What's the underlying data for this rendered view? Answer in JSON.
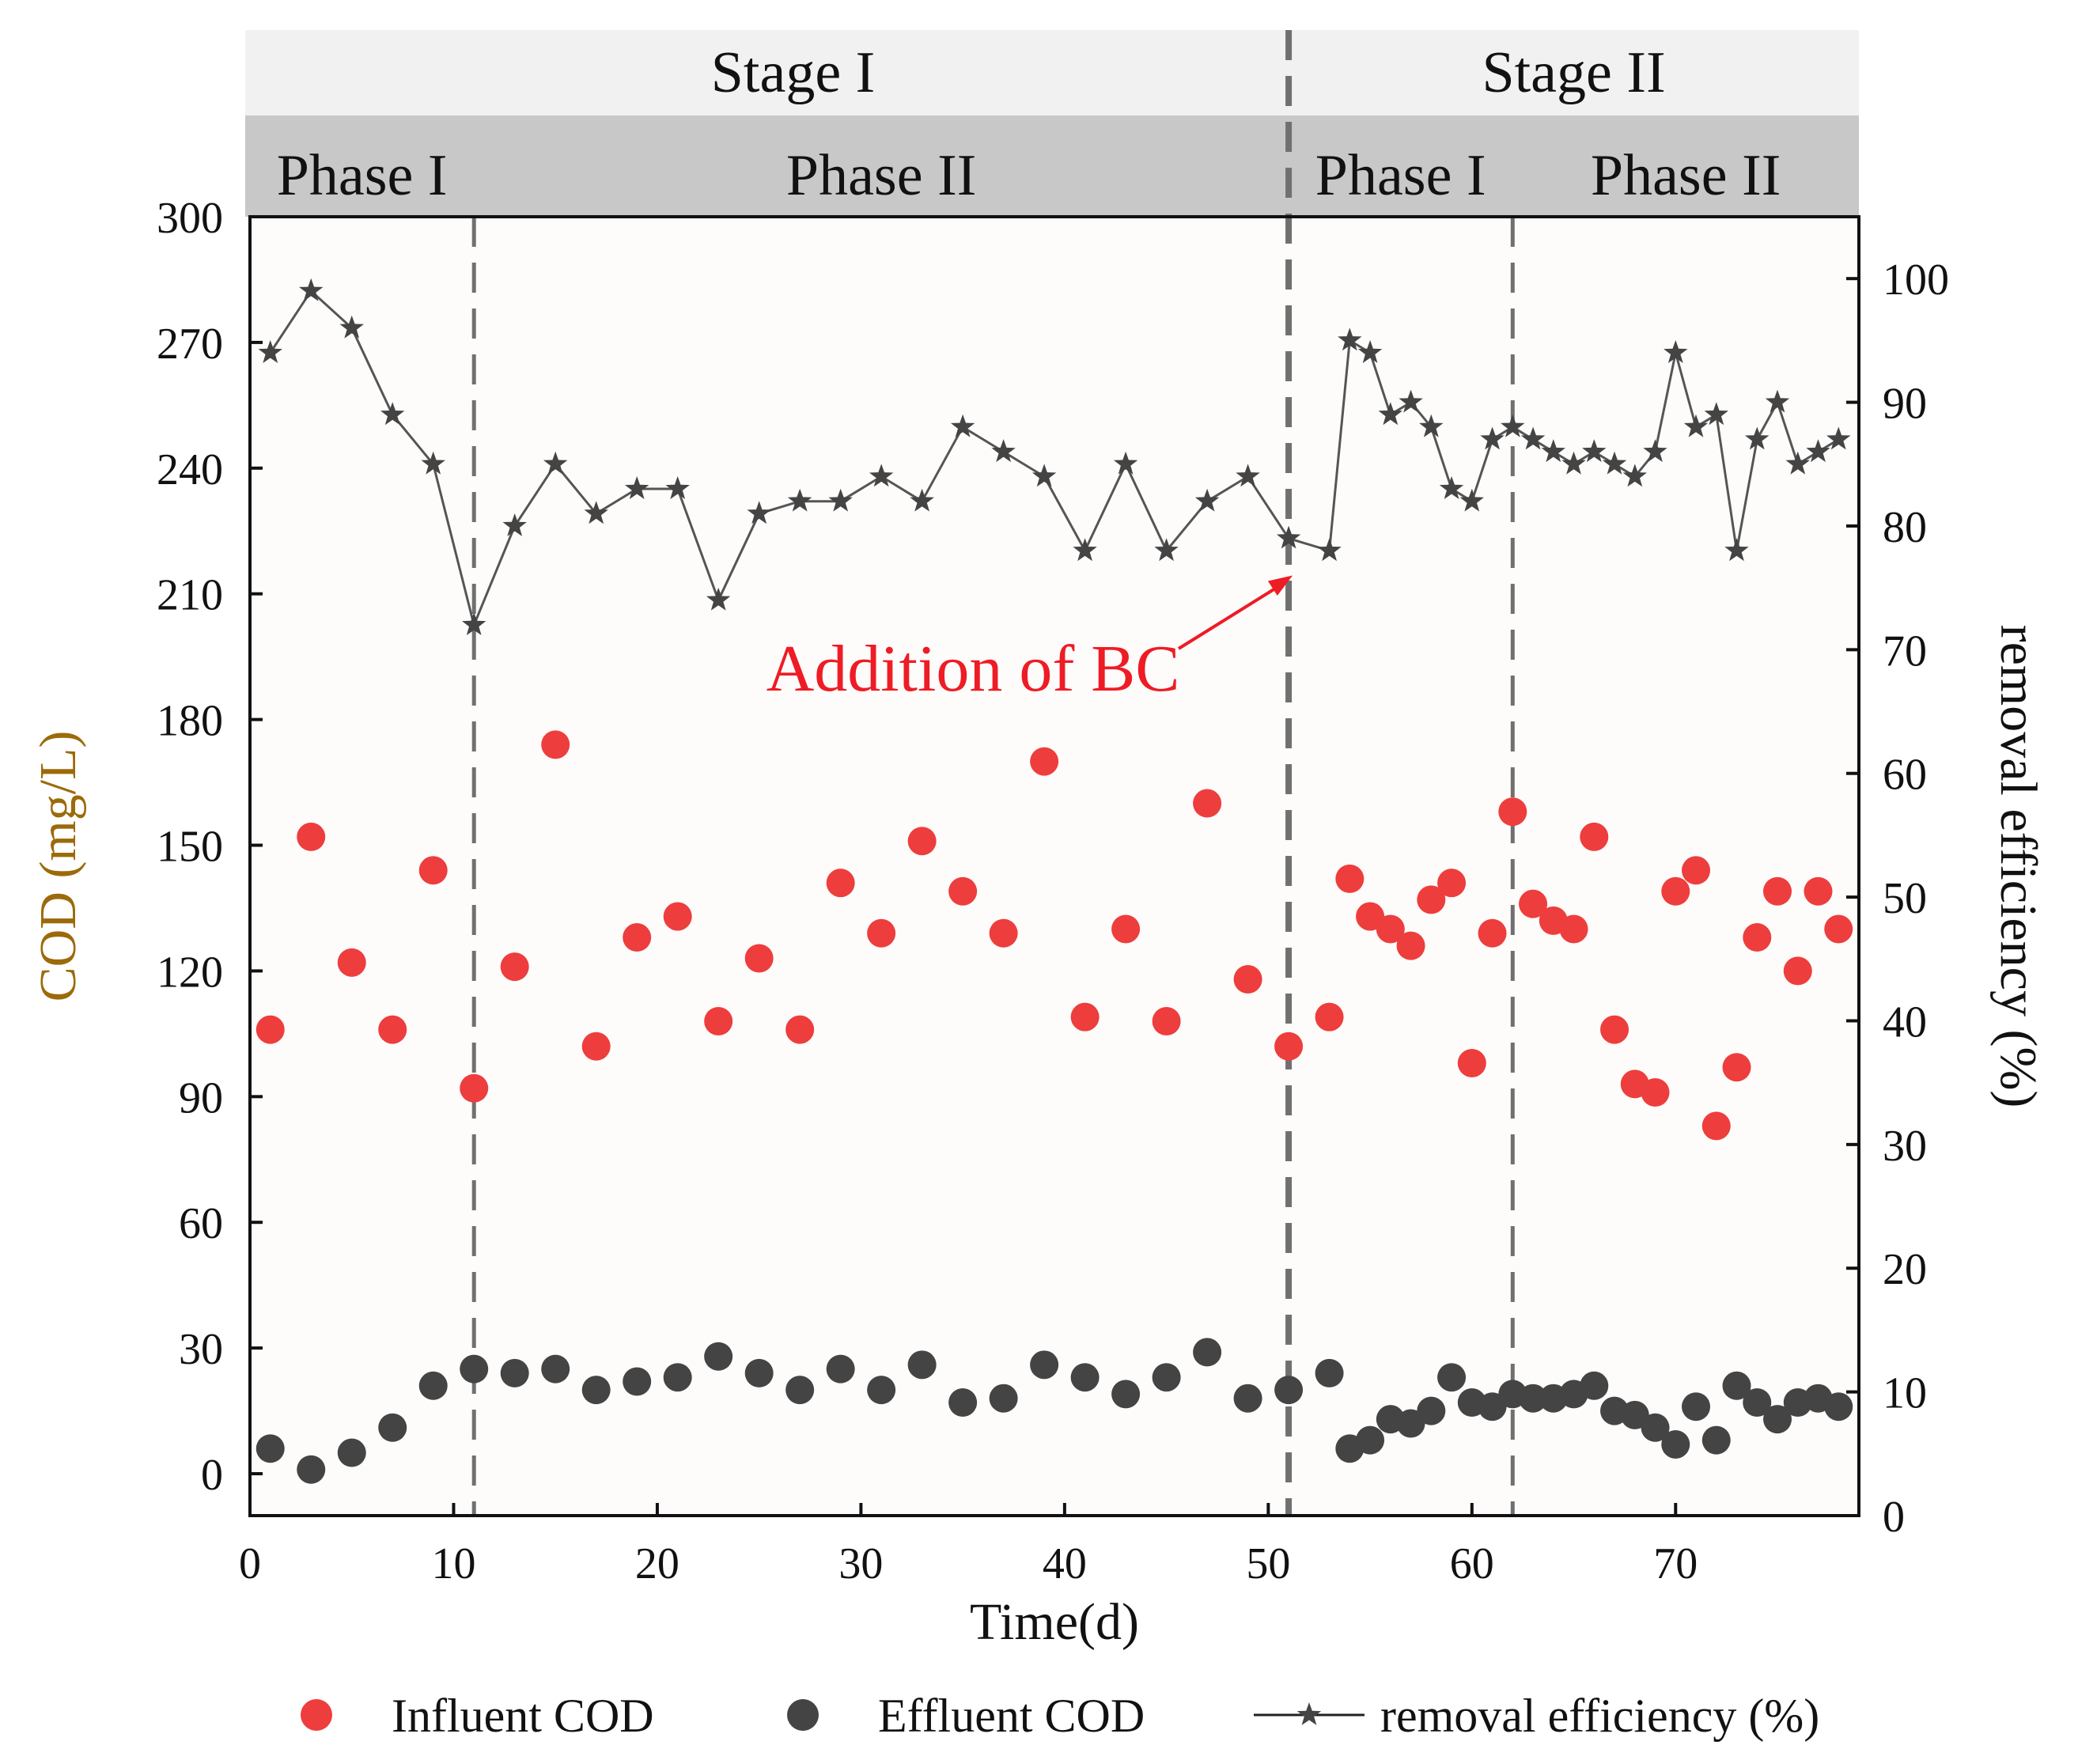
{
  "chart_data": {
    "type": "scatter",
    "title": "",
    "xlabel": "Time(d)",
    "ylabel": "COD (mg/L)",
    "y2label": "removal efficiency (%)",
    "xlim": [
      0,
      79
    ],
    "ylim": [
      -10,
      300
    ],
    "y2lim": [
      0,
      105
    ],
    "xticks": [
      0,
      10,
      20,
      30,
      40,
      50,
      60,
      70
    ],
    "yticks": [
      0,
      30,
      60,
      90,
      120,
      150,
      180,
      210,
      240,
      270,
      300
    ],
    "y2ticks": [
      0,
      10,
      20,
      30,
      40,
      50,
      60,
      70,
      80,
      90,
      100
    ],
    "stages": [
      {
        "label": "Stage I",
        "start": 0,
        "end": 51
      },
      {
        "label": "Stage II",
        "start": 51,
        "end": 79
      }
    ],
    "phases": [
      {
        "label": "Phase I",
        "start": 0,
        "end": 11
      },
      {
        "label": "Phase II",
        "start": 11,
        "end": 51
      },
      {
        "label": "Phase I",
        "start": 51,
        "end": 62
      },
      {
        "label": "Phase II",
        "start": 62,
        "end": 79
      }
    ],
    "dividers": [
      11,
      51,
      62
    ],
    "annotation": {
      "text": "Addition of BC",
      "target_x": 51,
      "target_y2": 76
    },
    "series": [
      {
        "name": "Influent COD",
        "marker": "circle",
        "color": "#ee3d3d",
        "axis": "left",
        "points": [
          [
            1,
            106
          ],
          [
            3,
            152
          ],
          [
            5,
            122
          ],
          [
            7,
            106
          ],
          [
            9,
            144
          ],
          [
            11,
            92
          ],
          [
            13,
            121
          ],
          [
            15,
            174
          ],
          [
            17,
            102
          ],
          [
            19,
            128
          ],
          [
            21,
            133
          ],
          [
            23,
            108
          ],
          [
            25,
            123
          ],
          [
            27,
            106
          ],
          [
            29,
            141
          ],
          [
            31,
            129
          ],
          [
            33,
            151
          ],
          [
            35,
            139
          ],
          [
            37,
            129
          ],
          [
            39,
            170
          ],
          [
            41,
            109
          ],
          [
            43,
            130
          ],
          [
            45,
            108
          ],
          [
            47,
            160
          ],
          [
            49,
            118
          ],
          [
            51,
            102
          ],
          [
            53,
            109
          ],
          [
            54,
            142
          ],
          [
            55,
            133
          ],
          [
            56,
            130
          ],
          [
            57,
            126
          ],
          [
            58,
            137
          ],
          [
            59,
            141
          ],
          [
            60,
            98
          ],
          [
            61,
            129
          ],
          [
            62,
            158
          ],
          [
            63,
            136
          ],
          [
            64,
            132
          ],
          [
            65,
            130
          ],
          [
            66,
            152
          ],
          [
            67,
            106
          ],
          [
            68,
            93
          ],
          [
            69,
            91
          ],
          [
            70,
            139
          ],
          [
            71,
            144
          ],
          [
            72,
            83
          ],
          [
            73,
            97
          ],
          [
            74,
            128
          ],
          [
            75,
            139
          ],
          [
            76,
            120
          ],
          [
            77,
            139
          ],
          [
            78,
            130
          ]
        ]
      },
      {
        "name": "Effluent COD",
        "marker": "circle",
        "color": "#444444",
        "axis": "left",
        "points": [
          [
            1,
            6
          ],
          [
            3,
            1
          ],
          [
            5,
            5
          ],
          [
            7,
            11
          ],
          [
            9,
            21
          ],
          [
            11,
            25
          ],
          [
            13,
            24
          ],
          [
            15,
            25
          ],
          [
            17,
            20
          ],
          [
            19,
            22
          ],
          [
            21,
            23
          ],
          [
            23,
            28
          ],
          [
            25,
            24
          ],
          [
            27,
            20
          ],
          [
            29,
            25
          ],
          [
            31,
            20
          ],
          [
            33,
            26
          ],
          [
            35,
            17
          ],
          [
            37,
            18
          ],
          [
            39,
            26
          ],
          [
            41,
            23
          ],
          [
            43,
            19
          ],
          [
            45,
            23
          ],
          [
            47,
            29
          ],
          [
            49,
            18
          ],
          [
            51,
            20
          ],
          [
            53,
            24
          ],
          [
            54,
            6
          ],
          [
            55,
            8
          ],
          [
            56,
            13
          ],
          [
            57,
            12
          ],
          [
            58,
            15
          ],
          [
            59,
            23
          ],
          [
            60,
            17
          ],
          [
            61,
            16
          ],
          [
            62,
            19
          ],
          [
            63,
            18
          ],
          [
            64,
            18
          ],
          [
            65,
            19
          ],
          [
            66,
            21
          ],
          [
            67,
            15
          ],
          [
            68,
            14
          ],
          [
            69,
            11
          ],
          [
            70,
            7
          ],
          [
            71,
            16
          ],
          [
            72,
            8
          ],
          [
            73,
            21
          ],
          [
            74,
            17
          ],
          [
            75,
            13
          ],
          [
            76,
            17
          ],
          [
            77,
            18
          ],
          [
            78,
            16
          ]
        ]
      },
      {
        "name": "removal efficiency (%)",
        "marker": "star-line",
        "color": "#444444",
        "axis": "right",
        "points": [
          [
            1,
            94
          ],
          [
            3,
            99
          ],
          [
            5,
            96
          ],
          [
            7,
            89
          ],
          [
            9,
            85
          ],
          [
            11,
            72
          ],
          [
            13,
            80
          ],
          [
            15,
            85
          ],
          [
            17,
            81
          ],
          [
            19,
            83
          ],
          [
            21,
            83
          ],
          [
            23,
            74
          ],
          [
            25,
            81
          ],
          [
            27,
            82
          ],
          [
            29,
            82
          ],
          [
            31,
            84
          ],
          [
            33,
            82
          ],
          [
            35,
            88
          ],
          [
            37,
            86
          ],
          [
            39,
            84
          ],
          [
            41,
            78
          ],
          [
            43,
            85
          ],
          [
            45,
            78
          ],
          [
            47,
            82
          ],
          [
            49,
            84
          ],
          [
            51,
            79
          ],
          [
            53,
            78
          ],
          [
            54,
            95
          ],
          [
            55,
            94
          ],
          [
            56,
            89
          ],
          [
            57,
            90
          ],
          [
            58,
            88
          ],
          [
            59,
            83
          ],
          [
            60,
            82
          ],
          [
            61,
            87
          ],
          [
            62,
            88
          ],
          [
            63,
            87
          ],
          [
            64,
            86
          ],
          [
            65,
            85
          ],
          [
            66,
            86
          ],
          [
            67,
            85
          ],
          [
            68,
            84
          ],
          [
            69,
            86
          ],
          [
            70,
            94
          ],
          [
            71,
            88
          ],
          [
            72,
            89
          ],
          [
            73,
            78
          ],
          [
            74,
            87
          ],
          [
            75,
            90
          ],
          [
            76,
            85
          ],
          [
            77,
            86
          ],
          [
            78,
            87
          ]
        ]
      }
    ]
  }
}
